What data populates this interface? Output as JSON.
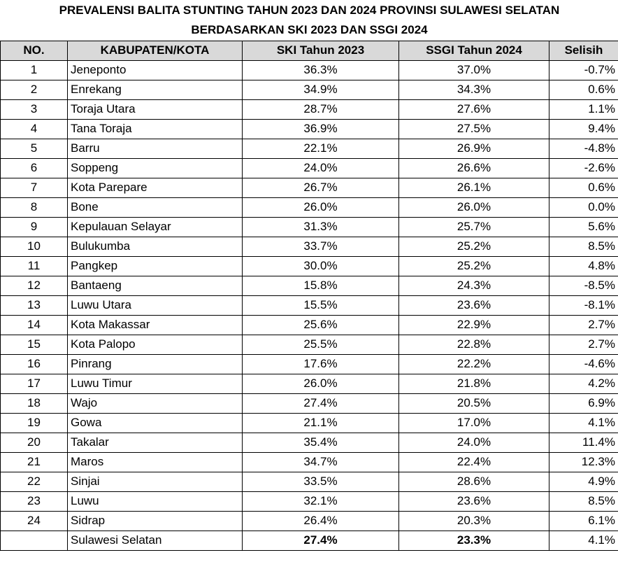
{
  "header": {
    "title": [
      "PREVALENSI BALITA STUNTING TAHUN 2023 DAN 2024 PROVINSI SULAWESI SELATAN",
      "BERDASARKAN SKI 2023 DAN SSGI 2024"
    ]
  },
  "table": {
    "columns": [
      "NO.",
      "KABUPATEN/KOTA",
      "SKI Tahun 2023",
      "SSGI Tahun 2024",
      "Selisih"
    ],
    "rows": [
      [
        "1",
        "Jeneponto",
        "36.3%",
        "37.0%",
        "-0.7%"
      ],
      [
        "2",
        "Enrekang",
        "34.9%",
        "34.3%",
        "0.6%"
      ],
      [
        "3",
        "Toraja Utara",
        "28.7%",
        "27.6%",
        "1.1%"
      ],
      [
        "4",
        "Tana Toraja",
        "36.9%",
        "27.5%",
        "9.4%"
      ],
      [
        "5",
        "Barru",
        "22.1%",
        "26.9%",
        "-4.8%"
      ],
      [
        "6",
        "Soppeng",
        "24.0%",
        "26.6%",
        "-2.6%"
      ],
      [
        "7",
        "Kota Parepare",
        "26.7%",
        "26.1%",
        "0.6%"
      ],
      [
        "8",
        "Bone",
        "26.0%",
        "26.0%",
        "0.0%"
      ],
      [
        "9",
        "Kepulauan Selayar",
        "31.3%",
        "25.7%",
        "5.6%"
      ],
      [
        "10",
        "Bulukumba",
        "33.7%",
        "25.2%",
        "8.5%"
      ],
      [
        "11",
        "Pangkep",
        "30.0%",
        "25.2%",
        "4.8%"
      ],
      [
        "12",
        "Bantaeng",
        "15.8%",
        "24.3%",
        "-8.5%"
      ],
      [
        "13",
        "Luwu Utara",
        "15.5%",
        "23.6%",
        "-8.1%"
      ],
      [
        "14",
        "Kota Makassar",
        "25.6%",
        "22.9%",
        "2.7%"
      ],
      [
        "15",
        "Kota Palopo",
        "25.5%",
        "22.8%",
        "2.7%"
      ],
      [
        "16",
        "Pinrang",
        "17.6%",
        "22.2%",
        "-4.6%"
      ],
      [
        "17",
        "Luwu Timur",
        "26.0%",
        "21.8%",
        "4.2%"
      ],
      [
        "18",
        "Wajo",
        "27.4%",
        "20.5%",
        "6.9%"
      ],
      [
        "19",
        "Gowa",
        "21.1%",
        "17.0%",
        "4.1%"
      ],
      [
        "20",
        "Takalar",
        "35.4%",
        "24.0%",
        "11.4%"
      ],
      [
        "21",
        "Maros",
        "34.7%",
        "22.4%",
        "12.3%"
      ],
      [
        "22",
        "Sinjai",
        "33.5%",
        "28.6%",
        "4.9%"
      ],
      [
        "23",
        "Luwu",
        "32.1%",
        "23.6%",
        "8.5%"
      ],
      [
        "24",
        "Sidrap",
        "26.4%",
        "20.3%",
        "6.1%"
      ]
    ],
    "total": [
      "Sulawesi Selatan",
      "27.4%",
      "23.3%",
      "4.1%"
    ]
  }
}
